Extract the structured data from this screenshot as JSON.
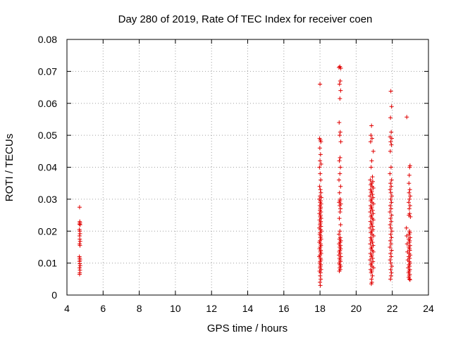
{
  "chart_data": {
    "type": "scatter",
    "title": "Day 280 of 2019, Rate Of TEC Index for receiver coen",
    "xlabel": "GPS time / hours",
    "ylabel": "ROTI / TECUs",
    "xlim": [
      4,
      24
    ],
    "ylim": [
      0,
      0.08
    ],
    "x_ticks": [
      4,
      6,
      8,
      10,
      12,
      14,
      16,
      18,
      20,
      22,
      24
    ],
    "x_tick_labels": [
      "4",
      "6",
      "8",
      "10",
      "12",
      "14",
      "16",
      "18",
      "20",
      "22",
      "24"
    ],
    "y_ticks": [
      0,
      0.01,
      0.02,
      0.03,
      0.04,
      0.05,
      0.06,
      0.07,
      0.08
    ],
    "y_tick_labels": [
      "0",
      "0.01",
      "0.02",
      "0.03",
      "0.04",
      "0.05",
      "0.06",
      "0.07",
      "0.08"
    ],
    "grid": true,
    "marker": "+",
    "marker_color": "#e00000",
    "series": [
      {
        "name": "ROTI",
        "points": [
          [
            4.7,
            0.0275
          ],
          [
            4.71,
            0.023
          ],
          [
            4.72,
            0.0226
          ],
          [
            4.7,
            0.0222
          ],
          [
            4.73,
            0.022
          ],
          [
            4.69,
            0.0205
          ],
          [
            4.71,
            0.02
          ],
          [
            4.72,
            0.0192
          ],
          [
            4.7,
            0.0185
          ],
          [
            4.71,
            0.0175
          ],
          [
            4.73,
            0.0168
          ],
          [
            4.7,
            0.016
          ],
          [
            4.72,
            0.0155
          ],
          [
            4.69,
            0.012
          ],
          [
            4.71,
            0.0115
          ],
          [
            4.72,
            0.011
          ],
          [
            4.7,
            0.0105
          ],
          [
            4.71,
            0.0098
          ],
          [
            4.73,
            0.0092
          ],
          [
            4.7,
            0.0085
          ],
          [
            4.72,
            0.0078
          ],
          [
            4.71,
            0.007
          ],
          [
            4.7,
            0.0065
          ],
          [
            18.0,
            0.066
          ],
          [
            17.98,
            0.049
          ],
          [
            18.02,
            0.0485
          ],
          [
            18.05,
            0.048
          ],
          [
            17.99,
            0.046
          ],
          [
            18.03,
            0.044
          ],
          [
            18.0,
            0.042
          ],
          [
            18.06,
            0.041
          ],
          [
            17.97,
            0.04
          ],
          [
            18.01,
            0.038
          ],
          [
            18.04,
            0.036
          ],
          [
            17.98,
            0.034
          ],
          [
            18.02,
            0.033
          ],
          [
            18.05,
            0.032
          ],
          [
            18.0,
            0.031
          ],
          [
            18.07,
            0.0305
          ],
          [
            17.96,
            0.03
          ],
          [
            18.03,
            0.0295
          ],
          [
            18.01,
            0.029
          ],
          [
            18.06,
            0.0285
          ],
          [
            17.99,
            0.028
          ],
          [
            18.04,
            0.0275
          ],
          [
            18.02,
            0.027
          ],
          [
            18.0,
            0.0265
          ],
          [
            18.05,
            0.026
          ],
          [
            17.97,
            0.0255
          ],
          [
            18.03,
            0.025
          ],
          [
            18.01,
            0.0245
          ],
          [
            18.06,
            0.024
          ],
          [
            17.98,
            0.0235
          ],
          [
            18.04,
            0.023
          ],
          [
            18.02,
            0.0225
          ],
          [
            18.0,
            0.022
          ],
          [
            18.05,
            0.0215
          ],
          [
            17.96,
            0.021
          ],
          [
            18.03,
            0.0205
          ],
          [
            18.07,
            0.02
          ],
          [
            18.01,
            0.0195
          ],
          [
            17.99,
            0.019
          ],
          [
            18.04,
            0.0185
          ],
          [
            18.02,
            0.018
          ],
          [
            18.06,
            0.0175
          ],
          [
            18.0,
            0.017
          ],
          [
            17.97,
            0.0165
          ],
          [
            18.03,
            0.016
          ],
          [
            18.05,
            0.0155
          ],
          [
            18.01,
            0.015
          ],
          [
            17.98,
            0.0145
          ],
          [
            18.04,
            0.014
          ],
          [
            18.02,
            0.0135
          ],
          [
            18.06,
            0.013
          ],
          [
            18.0,
            0.0125
          ],
          [
            17.96,
            0.012
          ],
          [
            18.03,
            0.0115
          ],
          [
            18.05,
            0.011
          ],
          [
            18.01,
            0.0105
          ],
          [
            17.99,
            0.01
          ],
          [
            18.04,
            0.0095
          ],
          [
            18.02,
            0.009
          ],
          [
            18.0,
            0.0085
          ],
          [
            18.06,
            0.008
          ],
          [
            17.98,
            0.0075
          ],
          [
            18.03,
            0.007
          ],
          [
            18.01,
            0.006
          ],
          [
            18.04,
            0.005
          ],
          [
            18.0,
            0.004
          ],
          [
            18.02,
            0.003
          ],
          [
            19.1,
            0.0715
          ],
          [
            19.05,
            0.0712
          ],
          [
            19.15,
            0.071
          ],
          [
            19.12,
            0.067
          ],
          [
            19.08,
            0.066
          ],
          [
            19.14,
            0.064
          ],
          [
            19.1,
            0.0615
          ],
          [
            19.06,
            0.054
          ],
          [
            19.12,
            0.051
          ],
          [
            19.09,
            0.05
          ],
          [
            19.15,
            0.048
          ],
          [
            19.11,
            0.043
          ],
          [
            19.07,
            0.042
          ],
          [
            19.13,
            0.04
          ],
          [
            19.1,
            0.038
          ],
          [
            19.05,
            0.036
          ],
          [
            19.14,
            0.034
          ],
          [
            19.08,
            0.032
          ],
          [
            19.12,
            0.03
          ],
          [
            19.1,
            0.0295
          ],
          [
            19.06,
            0.029
          ],
          [
            19.15,
            0.0285
          ],
          [
            19.09,
            0.028
          ],
          [
            19.13,
            0.027
          ],
          [
            19.11,
            0.026
          ],
          [
            19.07,
            0.024
          ],
          [
            19.14,
            0.022
          ],
          [
            19.1,
            0.02
          ],
          [
            19.05,
            0.019
          ],
          [
            19.12,
            0.018
          ],
          [
            19.08,
            0.0175
          ],
          [
            19.15,
            0.017
          ],
          [
            19.11,
            0.0165
          ],
          [
            19.06,
            0.016
          ],
          [
            19.13,
            0.0155
          ],
          [
            19.09,
            0.015
          ],
          [
            19.14,
            0.0145
          ],
          [
            19.1,
            0.014
          ],
          [
            19.07,
            0.0135
          ],
          [
            19.12,
            0.013
          ],
          [
            19.05,
            0.0125
          ],
          [
            19.15,
            0.012
          ],
          [
            19.08,
            0.0115
          ],
          [
            19.11,
            0.011
          ],
          [
            19.13,
            0.0105
          ],
          [
            19.06,
            0.01
          ],
          [
            19.1,
            0.0095
          ],
          [
            19.14,
            0.009
          ],
          [
            19.09,
            0.0085
          ],
          [
            19.12,
            0.008
          ],
          [
            19.07,
            0.0075
          ],
          [
            20.85,
            0.053
          ],
          [
            20.82,
            0.05
          ],
          [
            20.88,
            0.049
          ],
          [
            20.8,
            0.048
          ],
          [
            20.95,
            0.045
          ],
          [
            20.86,
            0.042
          ],
          [
            20.83,
            0.04
          ],
          [
            20.9,
            0.037
          ],
          [
            20.78,
            0.036
          ],
          [
            20.92,
            0.0355
          ],
          [
            20.85,
            0.035
          ],
          [
            20.81,
            0.0345
          ],
          [
            20.88,
            0.034
          ],
          [
            20.95,
            0.0335
          ],
          [
            20.79,
            0.033
          ],
          [
            20.86,
            0.0325
          ],
          [
            20.83,
            0.032
          ],
          [
            20.9,
            0.0315
          ],
          [
            20.77,
            0.031
          ],
          [
            20.93,
            0.0305
          ],
          [
            20.85,
            0.03
          ],
          [
            20.81,
            0.0295
          ],
          [
            20.88,
            0.029
          ],
          [
            20.96,
            0.0285
          ],
          [
            20.8,
            0.028
          ],
          [
            20.86,
            0.0275
          ],
          [
            20.83,
            0.027
          ],
          [
            20.91,
            0.0265
          ],
          [
            20.78,
            0.026
          ],
          [
            20.94,
            0.0255
          ],
          [
            20.85,
            0.025
          ],
          [
            20.82,
            0.0245
          ],
          [
            20.89,
            0.024
          ],
          [
            20.95,
            0.0235
          ],
          [
            20.79,
            0.023
          ],
          [
            20.87,
            0.0225
          ],
          [
            20.84,
            0.022
          ],
          [
            20.91,
            0.0215
          ],
          [
            20.77,
            0.021
          ],
          [
            20.93,
            0.0205
          ],
          [
            20.86,
            0.02
          ],
          [
            20.81,
            0.0195
          ],
          [
            20.88,
            0.019
          ],
          [
            20.96,
            0.0185
          ],
          [
            20.8,
            0.018
          ],
          [
            20.85,
            0.0175
          ],
          [
            20.83,
            0.017
          ],
          [
            20.9,
            0.0165
          ],
          [
            20.78,
            0.016
          ],
          [
            20.94,
            0.0155
          ],
          [
            20.86,
            0.015
          ],
          [
            20.82,
            0.0145
          ],
          [
            20.89,
            0.014
          ],
          [
            20.95,
            0.0135
          ],
          [
            20.79,
            0.013
          ],
          [
            20.87,
            0.0125
          ],
          [
            20.84,
            0.012
          ],
          [
            20.91,
            0.0115
          ],
          [
            20.77,
            0.011
          ],
          [
            20.93,
            0.0105
          ],
          [
            20.85,
            0.01
          ],
          [
            20.81,
            0.0095
          ],
          [
            20.88,
            0.009
          ],
          [
            20.96,
            0.0085
          ],
          [
            20.8,
            0.008
          ],
          [
            20.86,
            0.0075
          ],
          [
            20.83,
            0.007
          ],
          [
            20.9,
            0.006
          ],
          [
            20.85,
            0.005
          ],
          [
            20.87,
            0.004
          ],
          [
            20.84,
            0.0035
          ],
          [
            21.92,
            0.0638
          ],
          [
            21.96,
            0.059
          ],
          [
            21.9,
            0.0555
          ],
          [
            21.94,
            0.051
          ],
          [
            21.88,
            0.0495
          ],
          [
            21.97,
            0.049
          ],
          [
            21.91,
            0.048
          ],
          [
            21.95,
            0.047
          ],
          [
            21.89,
            0.045
          ],
          [
            21.93,
            0.04
          ],
          [
            21.87,
            0.038
          ],
          [
            21.96,
            0.036
          ],
          [
            21.9,
            0.035
          ],
          [
            21.94,
            0.034
          ],
          [
            21.88,
            0.033
          ],
          [
            21.92,
            0.032
          ],
          [
            21.97,
            0.031
          ],
          [
            21.91,
            0.03
          ],
          [
            21.95,
            0.029
          ],
          [
            21.89,
            0.028
          ],
          [
            21.93,
            0.027
          ],
          [
            21.87,
            0.026
          ],
          [
            21.96,
            0.025
          ],
          [
            21.9,
            0.024
          ],
          [
            21.94,
            0.023
          ],
          [
            21.88,
            0.022
          ],
          [
            21.92,
            0.021
          ],
          [
            21.97,
            0.02
          ],
          [
            21.91,
            0.019
          ],
          [
            21.95,
            0.018
          ],
          [
            21.89,
            0.017
          ],
          [
            21.93,
            0.016
          ],
          [
            21.87,
            0.015
          ],
          [
            21.96,
            0.014
          ],
          [
            21.9,
            0.013
          ],
          [
            21.94,
            0.012
          ],
          [
            21.88,
            0.011
          ],
          [
            21.92,
            0.01
          ],
          [
            21.97,
            0.009
          ],
          [
            21.91,
            0.008
          ],
          [
            21.95,
            0.007
          ],
          [
            21.93,
            0.006
          ],
          [
            21.9,
            0.005
          ],
          [
            22.8,
            0.0557
          ],
          [
            22.98,
            0.0405
          ],
          [
            22.96,
            0.04
          ],
          [
            22.94,
            0.0375
          ],
          [
            22.92,
            0.035
          ],
          [
            22.97,
            0.033
          ],
          [
            22.93,
            0.032
          ],
          [
            22.99,
            0.031
          ],
          [
            22.95,
            0.03
          ],
          [
            22.91,
            0.029
          ],
          [
            22.98,
            0.028
          ],
          [
            22.94,
            0.027
          ],
          [
            22.96,
            0.0255
          ],
          [
            22.92,
            0.025
          ],
          [
            23.0,
            0.0245
          ],
          [
            22.78,
            0.021
          ],
          [
            22.95,
            0.02
          ],
          [
            22.97,
            0.0195
          ],
          [
            22.93,
            0.019
          ],
          [
            22.8,
            0.0185
          ],
          [
            22.99,
            0.018
          ],
          [
            22.91,
            0.0175
          ],
          [
            22.96,
            0.017
          ],
          [
            22.94,
            0.0165
          ],
          [
            22.82,
            0.016
          ],
          [
            22.98,
            0.0155
          ],
          [
            22.92,
            0.015
          ],
          [
            22.95,
            0.0145
          ],
          [
            22.97,
            0.014
          ],
          [
            22.84,
            0.0135
          ],
          [
            22.93,
            0.013
          ],
          [
            22.99,
            0.0125
          ],
          [
            22.91,
            0.012
          ],
          [
            22.96,
            0.0115
          ],
          [
            22.86,
            0.011
          ],
          [
            22.94,
            0.0105
          ],
          [
            22.98,
            0.01
          ],
          [
            22.92,
            0.0095
          ],
          [
            22.95,
            0.009
          ],
          [
            22.88,
            0.0085
          ],
          [
            22.97,
            0.008
          ],
          [
            22.93,
            0.0075
          ],
          [
            22.9,
            0.007
          ],
          [
            22.96,
            0.0065
          ],
          [
            22.94,
            0.006
          ],
          [
            22.91,
            0.0055
          ],
          [
            22.95,
            0.005
          ],
          [
            22.98,
            0.0048
          ]
        ]
      }
    ]
  }
}
